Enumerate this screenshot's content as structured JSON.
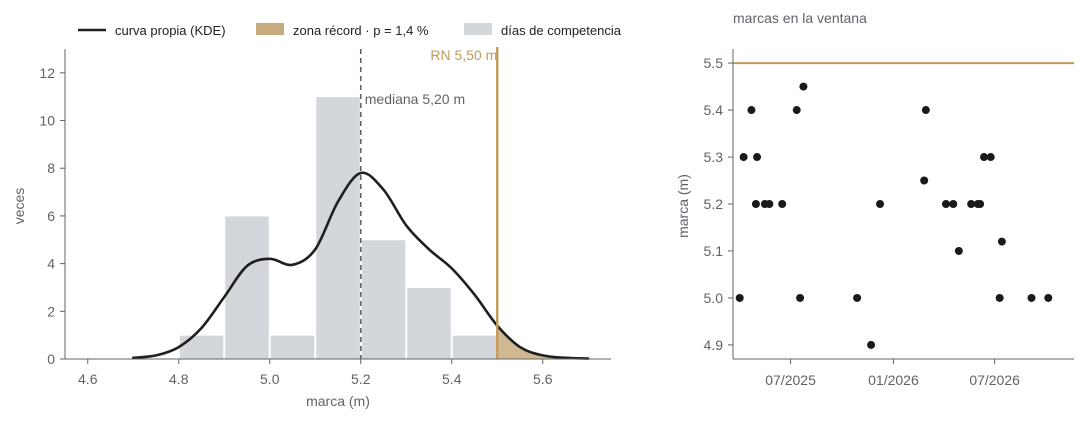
{
  "colors": {
    "kde": "#1f1f1f",
    "record": "#c49a5a",
    "record_fill": "#c8ab7c",
    "hist": "#d3d6da",
    "median": "#5f6368",
    "text": "#5f6368",
    "axis": "#5f6368",
    "points": "#1a1a1a"
  },
  "chart_data": [
    {
      "type": "bar",
      "title": "",
      "xlabel": "marca (m)",
      "ylabel": "veces",
      "xlim": [
        4.55,
        5.75
      ],
      "ylim": [
        0,
        13
      ],
      "grid": false,
      "legend_position": "top",
      "x_ticks": [
        4.6,
        4.8,
        5.0,
        5.2,
        5.4,
        5.6
      ],
      "x_tick_labels": [
        "4.6",
        "4.8",
        "5.0",
        "5.2",
        "5.4",
        "5.6"
      ],
      "y_ticks": [
        0,
        2,
        4,
        6,
        8,
        10,
        12
      ],
      "y_tick_labels": [
        "0",
        "2",
        "4",
        "6",
        "8",
        "10",
        "12"
      ],
      "legend": [
        {
          "label": "curva propia (KDE)",
          "kind": "line"
        },
        {
          "label": "zona récord · p = 1,4 %",
          "kind": "patch-record"
        },
        {
          "label": "días de competencia",
          "kind": "patch-hist"
        }
      ],
      "histogram": {
        "name": "días de competencia",
        "bins": [
          [
            4.8,
            4.9
          ],
          [
            4.9,
            5.0
          ],
          [
            5.0,
            5.1
          ],
          [
            5.1,
            5.2
          ],
          [
            5.2,
            5.3
          ],
          [
            5.3,
            5.4
          ],
          [
            5.4,
            5.5
          ]
        ],
        "counts": [
          1,
          6,
          1,
          11,
          5,
          3,
          1
        ]
      },
      "kde": {
        "name": "curva propia (KDE)",
        "x": [
          4.7,
          4.75,
          4.8,
          4.85,
          4.9,
          4.95,
          5.0,
          5.05,
          5.1,
          5.15,
          5.2,
          5.25,
          5.3,
          5.35,
          5.4,
          5.45,
          5.5,
          5.55,
          5.6,
          5.65,
          5.7
        ],
        "y": [
          0.05,
          0.15,
          0.5,
          1.3,
          2.6,
          3.9,
          4.2,
          3.95,
          4.6,
          6.6,
          7.8,
          7.1,
          5.6,
          4.6,
          3.8,
          2.7,
          1.4,
          0.5,
          0.15,
          0.05,
          0.02
        ]
      },
      "record": {
        "value": 5.5,
        "label": "RN 5,50 m",
        "zone_label": "zona récord · p = 1,4 %"
      },
      "median": {
        "value": 5.2,
        "label": "mediana 5,20 m"
      }
    },
    {
      "type": "scatter",
      "title": "marcas en la ventana",
      "xlabel": "",
      "ylabel": "marca (m)",
      "xlim": [
        "2025-03-20",
        "2026-11-20"
      ],
      "ylim": [
        4.87,
        5.53
      ],
      "grid": false,
      "x_ticks": [
        "2025-07-01",
        "2026-01-01",
        "2026-07-01"
      ],
      "x_tick_labels": [
        "07/2025",
        "01/2026",
        "07/2026"
      ],
      "y_ticks": [
        4.9,
        5.0,
        5.1,
        5.2,
        5.3,
        5.4,
        5.5
      ],
      "y_tick_labels": [
        "4.9",
        "5.0",
        "5.1",
        "5.2",
        "5.3",
        "5.4",
        "5.5"
      ],
      "reference_line": {
        "value": 5.5
      },
      "points": [
        {
          "x": "2025-04-01",
          "y": 5.0
        },
        {
          "x": "2025-04-08",
          "y": 5.3
        },
        {
          "x": "2025-04-22",
          "y": 5.4
        },
        {
          "x": "2025-04-30",
          "y": 5.2
        },
        {
          "x": "2025-05-02",
          "y": 5.3
        },
        {
          "x": "2025-05-16",
          "y": 5.2
        },
        {
          "x": "2025-05-24",
          "y": 5.2
        },
        {
          "x": "2025-06-16",
          "y": 5.2
        },
        {
          "x": "2025-07-12",
          "y": 5.4
        },
        {
          "x": "2025-07-18",
          "y": 5.0
        },
        {
          "x": "2025-07-24",
          "y": 5.45
        },
        {
          "x": "2025-10-28",
          "y": 5.0
        },
        {
          "x": "2025-11-22",
          "y": 4.9
        },
        {
          "x": "2025-12-08",
          "y": 5.2
        },
        {
          "x": "2026-02-25",
          "y": 5.25
        },
        {
          "x": "2026-02-28",
          "y": 5.4
        },
        {
          "x": "2026-04-05",
          "y": 5.2
        },
        {
          "x": "2026-04-18",
          "y": 5.2
        },
        {
          "x": "2026-04-28",
          "y": 5.1
        },
        {
          "x": "2026-05-20",
          "y": 5.2
        },
        {
          "x": "2026-06-01",
          "y": 5.2
        },
        {
          "x": "2026-06-05",
          "y": 5.2
        },
        {
          "x": "2026-06-12",
          "y": 5.3
        },
        {
          "x": "2026-06-24",
          "y": 5.3
        },
        {
          "x": "2026-07-10",
          "y": 5.0
        },
        {
          "x": "2026-07-14",
          "y": 5.12
        },
        {
          "x": "2026-09-05",
          "y": 5.0
        },
        {
          "x": "2026-10-05",
          "y": 5.0
        }
      ]
    }
  ]
}
